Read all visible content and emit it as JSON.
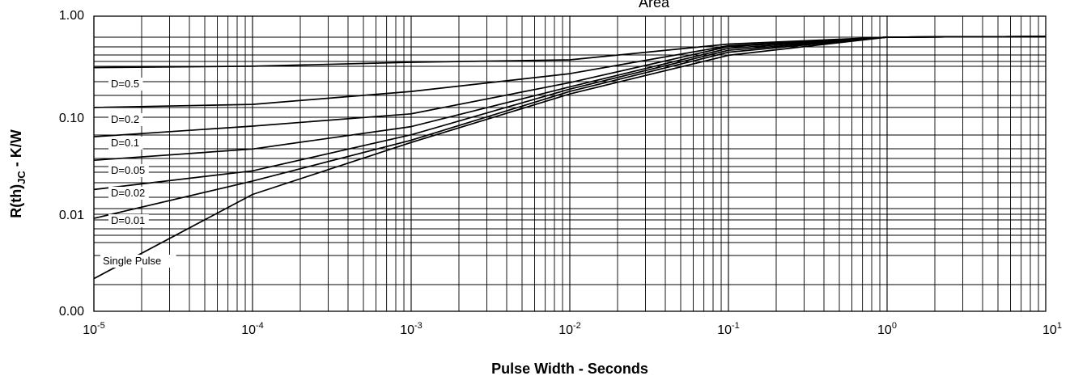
{
  "chart_data": {
    "type": "line",
    "title": "Area",
    "xlabel": "Pulse Width - Seconds",
    "ylabel_main": "R(th)",
    "ylabel_sub": "JC",
    "ylabel_suffix": " - K/W",
    "x_scale": "log",
    "xlim": [
      1e-05,
      10
    ],
    "x_ticks": [
      {
        "base": "10",
        "exp": "-5"
      },
      {
        "base": "10",
        "exp": "-4"
      },
      {
        "base": "10",
        "exp": "-3"
      },
      {
        "base": "10",
        "exp": "-2"
      },
      {
        "base": "10",
        "exp": "-1"
      },
      {
        "base": "10",
        "exp": "0"
      },
      {
        "base": "10",
        "exp": "1"
      }
    ],
    "y_tick_labels": [
      "1.00",
      "0.10",
      "0.01",
      "0.00"
    ],
    "grid": true,
    "line_color": "#000000",
    "series": [
      {
        "name": "D=0.5",
        "x": [
          1e-05,
          0.0001,
          0.001,
          0.01,
          0.1,
          1,
          10
        ],
        "y": [
          0.31,
          0.32,
          0.35,
          0.37,
          0.53,
          0.62,
          0.63
        ]
      },
      {
        "name": "D=0.2",
        "x": [
          1e-05,
          0.0001,
          0.001,
          0.01,
          0.1,
          1,
          10
        ],
        "y": [
          0.125,
          0.134,
          0.18,
          0.27,
          0.51,
          0.62,
          0.63
        ]
      },
      {
        "name": "D=0.1",
        "x": [
          1e-05,
          0.0001,
          0.001,
          0.01,
          0.1,
          1,
          10
        ],
        "y": [
          0.063,
          0.081,
          0.108,
          0.22,
          0.5,
          0.62,
          0.63
        ]
      },
      {
        "name": "D=0.05",
        "x": [
          1e-05,
          0.0001,
          0.001,
          0.01,
          0.1,
          1,
          10
        ],
        "y": [
          0.036,
          0.047,
          0.08,
          0.2,
          0.48,
          0.62,
          0.63
        ]
      },
      {
        "name": "D=0.02",
        "x": [
          1e-05,
          0.0001,
          0.001,
          0.01,
          0.1,
          1,
          10
        ],
        "y": [
          0.018,
          0.028,
          0.066,
          0.19,
          0.46,
          0.62,
          0.63
        ]
      },
      {
        "name": "D=0.01",
        "x": [
          1e-05,
          0.0001,
          0.001,
          0.01,
          0.1,
          1,
          10
        ],
        "y": [
          0.0095,
          0.022,
          0.058,
          0.18,
          0.44,
          0.62,
          0.63
        ]
      },
      {
        "name": "Single Pulse",
        "x": [
          1e-05,
          0.0001,
          0.001,
          0.01,
          0.1,
          1,
          10
        ],
        "y": [
          0.0045,
          0.016,
          0.055,
          0.17,
          0.41,
          0.62,
          0.63
        ]
      }
    ]
  }
}
